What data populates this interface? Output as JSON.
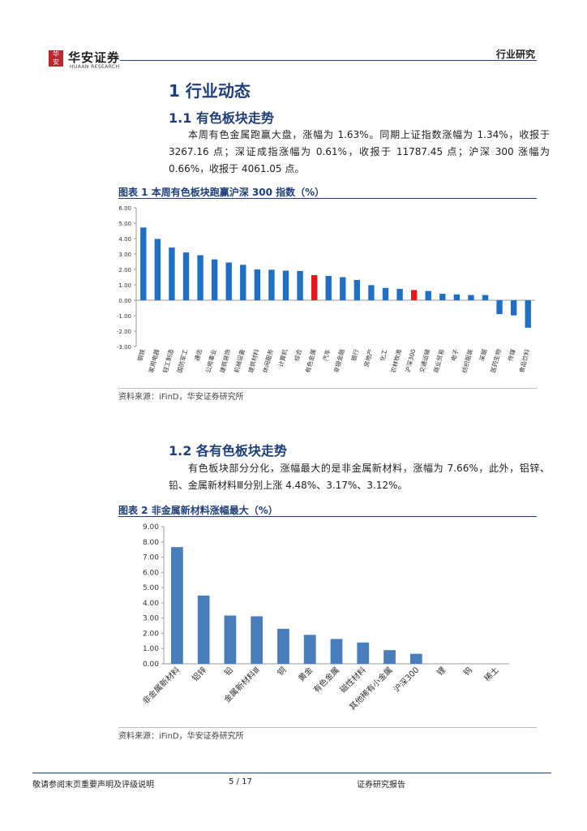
{
  "header": {
    "logo_name": "华安证券",
    "logo_en": "HUAAN RESEARCH",
    "report_type": "行业研究"
  },
  "section1": {
    "title": "1 行业动态",
    "sub1_title": "1.1 有色板块走势",
    "sub1_text": "本周有色金属跑赢大盘，涨幅为 1.63%。同期上证指数涨幅为 1.34%，收报于 3267.16 点；深证成指涨幅为 0.61%，收报于 11787.45 点；沪深 300 涨幅为 0.66%，收报于 4061.05 点。",
    "sub2_title": "1.2 各有色板块走势",
    "sub2_text": "有色板块部分分化，涨幅最大的是非金属新材料，涨幅为 7.66%，此外，铝锌、铅、金属新材料Ⅲ分别上涨 4.48%、3.17%、3.12%。"
  },
  "figure1": {
    "title": "图表 1 本周有色板块跑赢沪深 300 指数（%）",
    "source": "资料来源：iFinD，华安证券研究所"
  },
  "figure2": {
    "title": "图表 2 非金属新材料涨幅最大（%）",
    "source": "资料来源：iFinD，华安证券研究所"
  },
  "chart_data": [
    {
      "type": "bar",
      "categories": [
        "钢铁",
        "家用电器",
        "轻工制造",
        "国防军工",
        "通信",
        "公用事业",
        "建筑装饰",
        "机械设备",
        "建筑材料",
        "休闲服务",
        "计算机",
        "综合",
        "有色金属",
        "汽车",
        "非银金融",
        "银行",
        "房地产",
        "化工",
        "农林牧渔",
        "沪深300",
        "交通运输",
        "商业贸易",
        "电子",
        "纺织服装",
        "采掘",
        "医药生物",
        "传媒",
        "食品饮料"
      ],
      "values": [
        4.72,
        3.98,
        3.42,
        3.1,
        2.92,
        2.65,
        2.45,
        2.3,
        2.0,
        1.98,
        1.92,
        1.9,
        1.63,
        1.58,
        1.5,
        1.32,
        0.98,
        0.8,
        0.74,
        0.66,
        0.6,
        0.42,
        0.38,
        0.34,
        0.34,
        -0.9,
        -0.98,
        -1.78
      ],
      "highlight": [
        "有色金属",
        "沪深300"
      ],
      "ylim": [
        -3,
        6
      ],
      "yticks": [
        "6.00",
        "5.00",
        "4.00",
        "3.00",
        "2.00",
        "1.00",
        "0.00",
        "-1.00",
        "-2.00",
        "-3.00"
      ],
      "bar_color": "#1f6fc5",
      "highlight_color": "#e8161a"
    },
    {
      "type": "bar",
      "categories": [
        "非金属新材料",
        "铝锌",
        "铅",
        "金属新材料Ⅲ",
        "铜",
        "黄金",
        "有色金属",
        "磁性材料",
        "其他稀有小金属",
        "沪深300",
        "锂",
        "钨",
        "稀土"
      ],
      "values": [
        7.66,
        4.48,
        3.17,
        3.12,
        2.3,
        1.9,
        1.63,
        1.4,
        0.9,
        0.66,
        0,
        0,
        0
      ],
      "ylim": [
        0,
        9
      ],
      "yticks": [
        "9.00",
        "8.00",
        "7.00",
        "6.00",
        "5.00",
        "4.00",
        "3.00",
        "2.00",
        "1.00",
        "0.00"
      ],
      "bar_color": "#4a7ebb"
    }
  ],
  "footer": {
    "disclaimer": "敬请参阅末页重要声明及评级说明",
    "page": "5 / 17",
    "report_label": "证券研究报告"
  }
}
